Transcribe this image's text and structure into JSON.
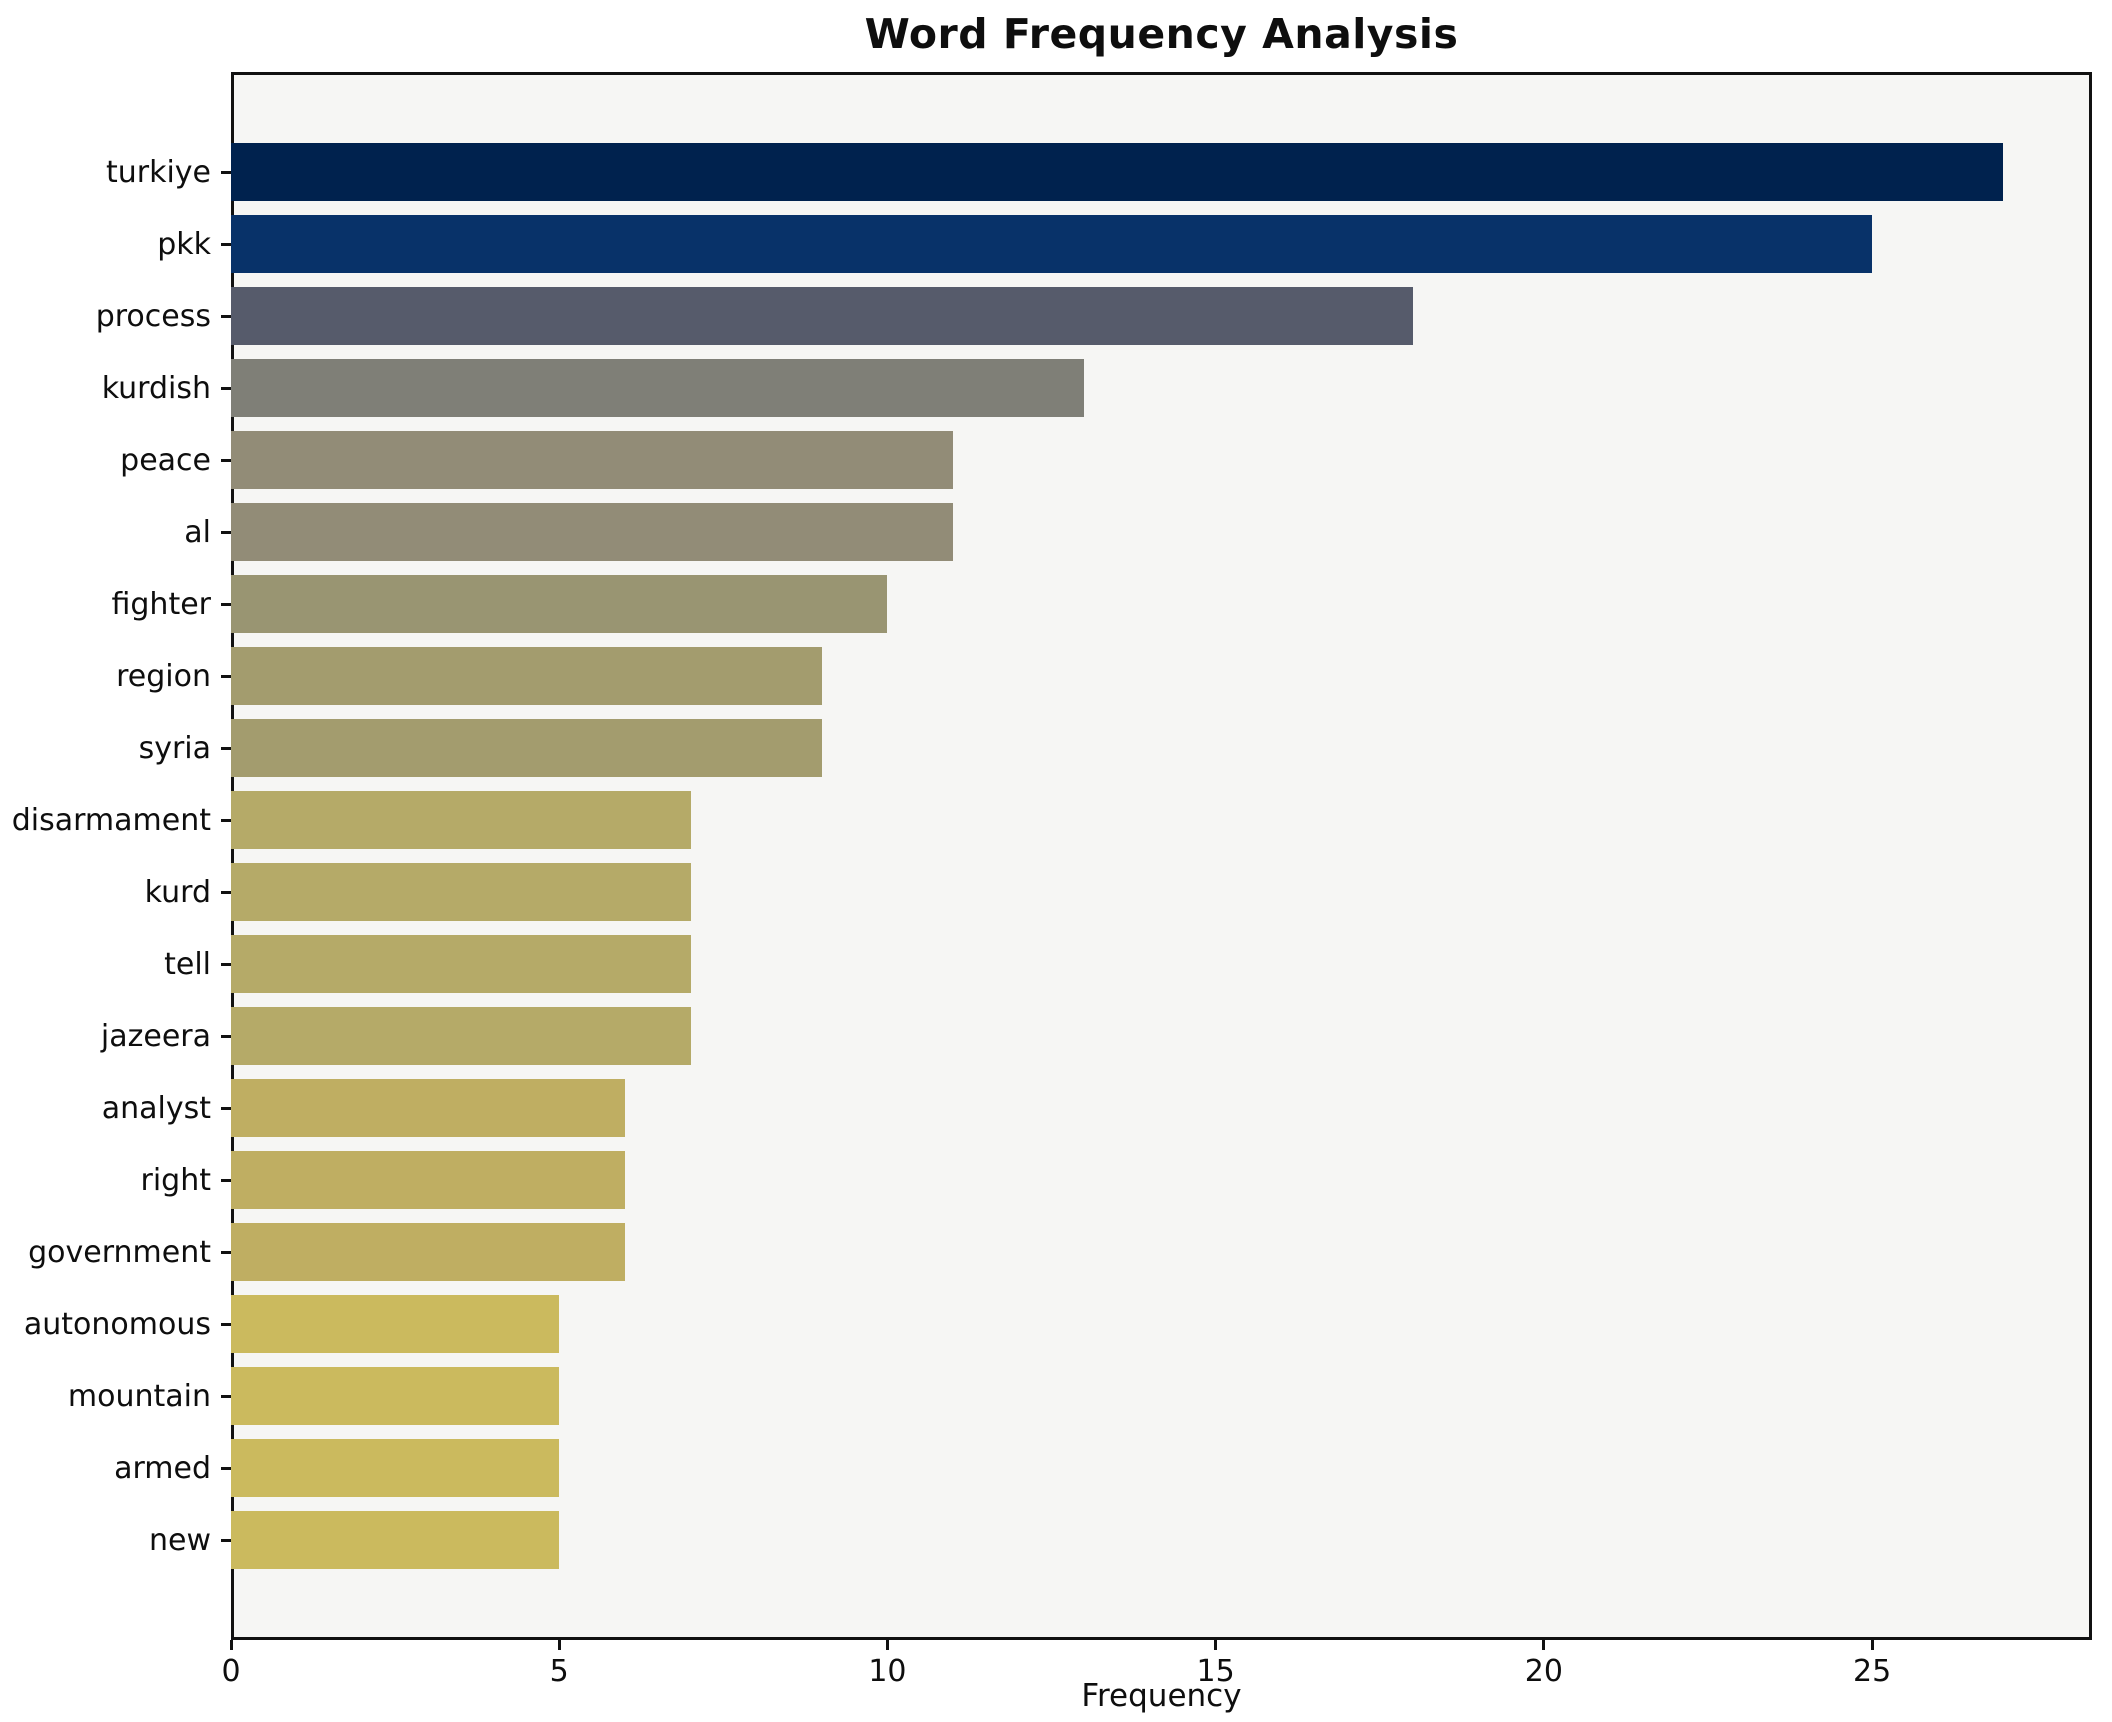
{
  "title": "Word Frequency Analysis",
  "chart_data": {
    "type": "bar",
    "orientation": "horizontal",
    "title": "Word Frequency Analysis",
    "xlabel": "Frequency",
    "ylabel": "",
    "grid": false,
    "legend": null,
    "xlim": [
      0,
      28.35
    ],
    "x_ticks": [
      0,
      5,
      10,
      15,
      20,
      25
    ],
    "plot_background": "#f6f6f4",
    "figure_background": "#ffffff",
    "categories": [
      "turkiye",
      "pkk",
      "process",
      "kurdish",
      "peace",
      "al",
      "fighter",
      "region",
      "syria",
      "disarmament",
      "kurd",
      "tell",
      "jazeera",
      "analyst",
      "right",
      "government",
      "autonomous",
      "mountain",
      "armed",
      "new"
    ],
    "values": [
      27,
      25,
      18,
      13,
      11,
      11,
      10,
      9,
      9,
      7,
      7,
      7,
      7,
      6,
      6,
      6,
      5,
      5,
      5,
      5
    ],
    "bar_colors": [
      "#00224e",
      "#083269",
      "#565b6b",
      "#7f7f77",
      "#928c77",
      "#928c77",
      "#999572",
      "#a39c6e",
      "#a39c6e",
      "#b5aa68",
      "#b5aa68",
      "#b5aa68",
      "#b5aa68",
      "#bfae62",
      "#bfae62",
      "#bfae62",
      "#cbba5e",
      "#cbba5e",
      "#cbba5e",
      "#cbba5e"
    ]
  }
}
